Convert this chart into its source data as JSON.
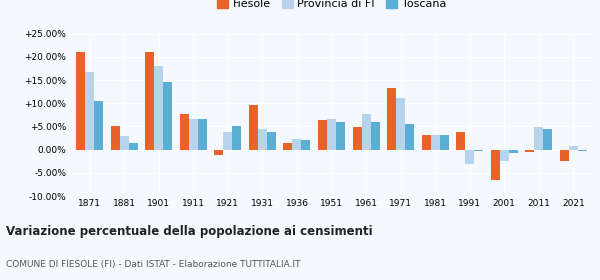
{
  "years": [
    1871,
    1881,
    1901,
    1911,
    1921,
    1931,
    1936,
    1951,
    1961,
    1971,
    1981,
    1991,
    2001,
    2011,
    2021
  ],
  "fiesole": [
    21.0,
    5.0,
    21.0,
    7.7,
    -1.2,
    9.7,
    1.5,
    6.3,
    4.8,
    13.2,
    3.2,
    3.7,
    -6.5,
    -0.5,
    -2.5
  ],
  "provincia_fi": [
    16.8,
    3.0,
    18.0,
    6.5,
    3.8,
    4.5,
    2.2,
    6.7,
    7.7,
    11.2,
    3.2,
    -3.2,
    -2.5,
    4.9,
    0.8
  ],
  "toscana": [
    10.5,
    1.5,
    14.5,
    6.5,
    5.1,
    3.7,
    2.1,
    6.0,
    5.9,
    5.5,
    3.2,
    -0.2,
    -0.8,
    4.5,
    -0.3
  ],
  "color_fiesole": "#e8622a",
  "color_provincia": "#b8d4ed",
  "color_toscana": "#5baed4",
  "title": "Variazione percentuale della popolazione ai censimenti",
  "subtitle": "COMUNE DI FIESOLE (FI) - Dati ISTAT - Elaborazione TUTTITALIA.IT",
  "ylim": [
    -10.0,
    25.0
  ],
  "yticks": [
    -10.0,
    -5.0,
    0.0,
    5.0,
    10.0,
    15.0,
    20.0,
    25.0
  ],
  "background_color": "#f5f8fd"
}
